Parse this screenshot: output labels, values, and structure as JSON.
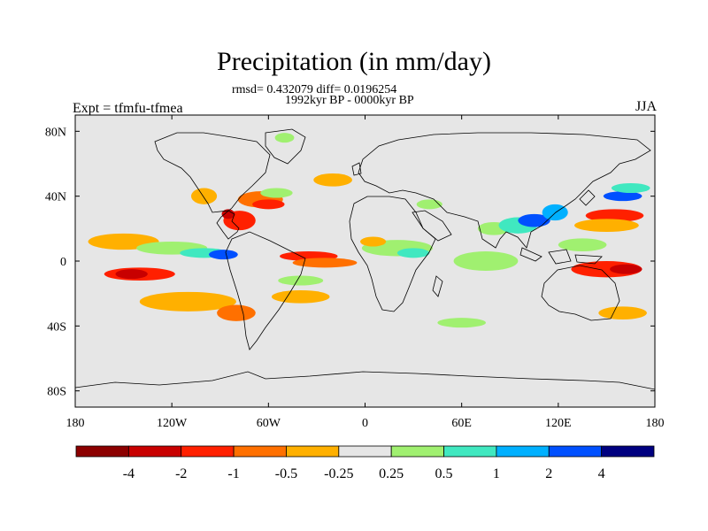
{
  "chart_data": {
    "type": "map-contour",
    "title": "Precipitation (in mm/day)",
    "stats_line": "rmsd= 0.432079 diff= 0.0196254",
    "period_line": "1992kyr BP - 0000kyr BP",
    "experiment_label": "Expt = tfmfu-tfmea",
    "season_label": "JJA",
    "lon_range": [
      -180,
      180
    ],
    "lat_range": [
      -90,
      90
    ],
    "x_ticks": [
      {
        "value": -180,
        "label": "180"
      },
      {
        "value": -120,
        "label": "120W"
      },
      {
        "value": -60,
        "label": "60W"
      },
      {
        "value": 0,
        "label": "0"
      },
      {
        "value": 60,
        "label": "60E"
      },
      {
        "value": 120,
        "label": "120E"
      },
      {
        "value": 180,
        "label": "180"
      }
    ],
    "y_ticks": [
      {
        "value": 80,
        "label": "80N"
      },
      {
        "value": 40,
        "label": "40N"
      },
      {
        "value": 0,
        "label": "0"
      },
      {
        "value": -40,
        "label": "40S"
      },
      {
        "value": -80,
        "label": "80S"
      }
    ],
    "colorbar": {
      "colors": [
        "#8c0000",
        "#c80000",
        "#ff2000",
        "#ff7000",
        "#ffb000",
        "#e6e6e6",
        "#a0f070",
        "#40e8c0",
        "#00b0ff",
        "#0050ff",
        "#000080"
      ],
      "labels": [
        "-4",
        "-2",
        "-1",
        "-0.5",
        "-0.25",
        "0.25",
        "0.5",
        "1",
        "2",
        "4"
      ]
    },
    "anomaly_regions": [
      {
        "name": "n-pacific-orange",
        "lon": -150,
        "lat": 12,
        "rlon": 22,
        "rlat": 5,
        "color": "#ffb000"
      },
      {
        "name": "tropical-pacific-red",
        "lon": -140,
        "lat": -8,
        "rlon": 22,
        "rlat": 4,
        "color": "#ff2000"
      },
      {
        "name": "tropical-pacific-darkred",
        "lon": -145,
        "lat": -8,
        "rlon": 10,
        "rlat": 3,
        "color": "#c80000"
      },
      {
        "name": "s-pacific-orange",
        "lon": -110,
        "lat": -25,
        "rlon": 30,
        "rlat": 6,
        "color": "#ffb000"
      },
      {
        "name": "s-pacific-orange2",
        "lon": -80,
        "lat": -32,
        "rlon": 12,
        "rlat": 5,
        "color": "#ff7000"
      },
      {
        "name": "e-pacific-green",
        "lon": -120,
        "lat": 8,
        "rlon": 22,
        "rlat": 4,
        "color": "#a0f070"
      },
      {
        "name": "e-pacific-cyan",
        "lon": -100,
        "lat": 5,
        "rlon": 15,
        "rlat": 3,
        "color": "#40e8c0"
      },
      {
        "name": "e-pacific-blue",
        "lon": -88,
        "lat": 4,
        "rlon": 9,
        "rlat": 3,
        "color": "#0050ff"
      },
      {
        "name": "caribbean-red",
        "lon": -78,
        "lat": 25,
        "rlon": 10,
        "rlat": 6,
        "color": "#ff2000"
      },
      {
        "name": "gulf-darkred",
        "lon": -85,
        "lat": 29,
        "rlon": 4,
        "rlat": 3,
        "color": "#c80000"
      },
      {
        "name": "n-atlantic-orange",
        "lon": -65,
        "lat": 38,
        "rlon": 14,
        "rlat": 5,
        "color": "#ff7000"
      },
      {
        "name": "n-atlantic-red",
        "lon": -60,
        "lat": 35,
        "rlon": 10,
        "rlat": 3,
        "color": "#ff2000"
      },
      {
        "name": "n-atlantic-green",
        "lon": -55,
        "lat": 42,
        "rlon": 10,
        "rlat": 3,
        "color": "#a0f070"
      },
      {
        "name": "mexico-orange",
        "lon": -100,
        "lat": 40,
        "rlon": 8,
        "rlat": 5,
        "color": "#ffb000"
      },
      {
        "name": "atlantic-itcz-red",
        "lon": -35,
        "lat": 3,
        "rlon": 18,
        "rlat": 3,
        "color": "#ff2000"
      },
      {
        "name": "atlantic-itcz-orange",
        "lon": -25,
        "lat": -1,
        "rlon": 20,
        "rlat": 3,
        "color": "#ff7000"
      },
      {
        "name": "n-atlantic-orange2",
        "lon": -20,
        "lat": 50,
        "rlon": 12,
        "rlat": 4,
        "color": "#ffb000"
      },
      {
        "name": "s-atlantic-green",
        "lon": -40,
        "lat": -12,
        "rlon": 14,
        "rlat": 3,
        "color": "#a0f070"
      },
      {
        "name": "s-atlantic-orange",
        "lon": -40,
        "lat": -22,
        "rlon": 18,
        "rlat": 4,
        "color": "#ffb000"
      },
      {
        "name": "africa-green",
        "lon": 20,
        "lat": 8,
        "rlon": 22,
        "rlat": 5,
        "color": "#a0f070"
      },
      {
        "name": "africa-cyan",
        "lon": 30,
        "lat": 5,
        "rlon": 10,
        "rlat": 3,
        "color": "#40e8c0"
      },
      {
        "name": "africa-orange",
        "lon": 5,
        "lat": 12,
        "rlon": 8,
        "rlat": 3,
        "color": "#ffb000"
      },
      {
        "name": "mediterranean-green",
        "lon": 40,
        "lat": 35,
        "rlon": 8,
        "rlat": 3,
        "color": "#a0f070"
      },
      {
        "name": "indian-ocean-green",
        "lon": 75,
        "lat": 0,
        "rlon": 20,
        "rlat": 6,
        "color": "#a0f070"
      },
      {
        "name": "india-green",
        "lon": 80,
        "lat": 20,
        "rlon": 10,
        "rlat": 4,
        "color": "#a0f070"
      },
      {
        "name": "bay-bengal-cyan",
        "lon": 95,
        "lat": 22,
        "rlon": 12,
        "rlat": 5,
        "color": "#40e8c0"
      },
      {
        "name": "bay-bengal-blue",
        "lon": 105,
        "lat": 25,
        "rlon": 10,
        "rlat": 4,
        "color": "#0050ff"
      },
      {
        "name": "china-lightblue",
        "lon": 118,
        "lat": 30,
        "rlon": 8,
        "rlat": 5,
        "color": "#00b0ff"
      },
      {
        "name": "japan-red",
        "lon": 155,
        "lat": 28,
        "rlon": 18,
        "rlat": 4,
        "color": "#ff2000"
      },
      {
        "name": "w-pacific-orange",
        "lon": 150,
        "lat": 22,
        "rlon": 20,
        "rlat": 4,
        "color": "#ffb000"
      },
      {
        "name": "w-pacific-green",
        "lon": 135,
        "lat": 10,
        "rlon": 15,
        "rlat": 4,
        "color": "#a0f070"
      },
      {
        "name": "indonesia-red",
        "lon": 150,
        "lat": -5,
        "rlon": 22,
        "rlat": 5,
        "color": "#ff2000"
      },
      {
        "name": "indonesia-darkred",
        "lon": 162,
        "lat": -5,
        "rlon": 10,
        "rlat": 3,
        "color": "#c80000"
      },
      {
        "name": "n-pacific-blue",
        "lon": 160,
        "lat": 40,
        "rlon": 12,
        "rlat": 3,
        "color": "#0050ff"
      },
      {
        "name": "n-pacific-cyan",
        "lon": 165,
        "lat": 45,
        "rlon": 12,
        "rlat": 3,
        "color": "#40e8c0"
      },
      {
        "name": "australia-orange",
        "lon": 160,
        "lat": -32,
        "rlon": 15,
        "rlat": 4,
        "color": "#ffb000"
      },
      {
        "name": "arctic-green",
        "lon": -50,
        "lat": 76,
        "rlon": 6,
        "rlat": 3,
        "color": "#a0f070"
      },
      {
        "name": "s-indian-green",
        "lon": 60,
        "lat": -38,
        "rlon": 15,
        "rlat": 3,
        "color": "#a0f070"
      }
    ]
  }
}
